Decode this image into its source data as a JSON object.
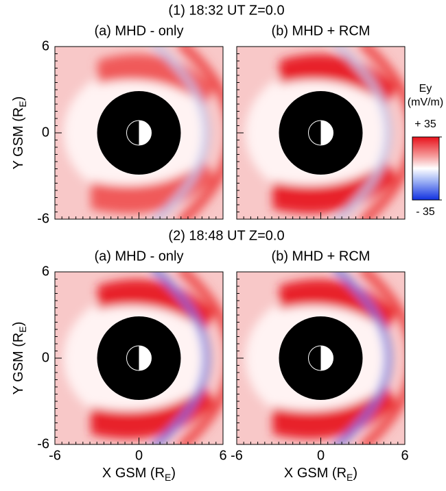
{
  "rows": [
    {
      "title": "(1) 18:32 UT Z=0.0",
      "panels": [
        {
          "title": "(a) MHD - only"
        },
        {
          "title": "(b) MHD + RCM"
        }
      ]
    },
    {
      "title": "(2) 18:48 UT Z=0.0",
      "panels": [
        {
          "title": "(a) MHD - only"
        },
        {
          "title": "(b) MHD + RCM"
        }
      ]
    }
  ],
  "x_axis": {
    "label": "X GSM (R",
    "subscript": "E",
    "close": ")",
    "lim": [
      -6,
      6
    ],
    "ticks": [
      -6,
      0,
      6
    ]
  },
  "y_axis": {
    "label": "Y GSM (R",
    "subscript": "E",
    "close": ")",
    "lim": [
      -6,
      6
    ],
    "ticks": [
      6,
      0,
      -6
    ]
  },
  "colorbar": {
    "title": "Ey",
    "unit": "(mV/m)",
    "lim": [
      -35,
      35
    ],
    "ticks": [
      {
        "value": 35,
        "label": "+ 35"
      },
      {
        "value": -35,
        "label": "- 35"
      }
    ]
  }
}
